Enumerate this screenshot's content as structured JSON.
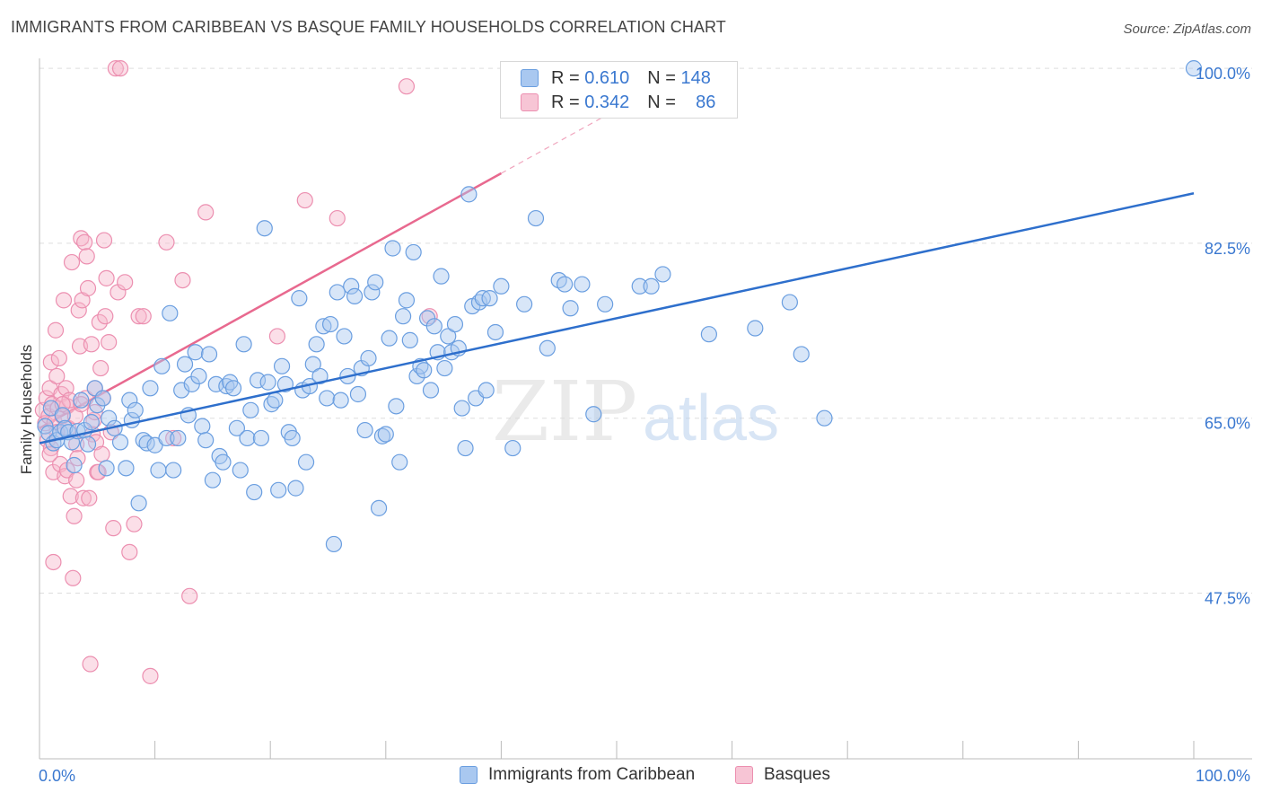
{
  "title": "IMMIGRANTS FROM CARIBBEAN VS BASQUE FAMILY HOUSEHOLDS CORRELATION CHART",
  "source": "Source: ZipAtlas.com",
  "watermark": {
    "zip": "ZIP",
    "atlas": "atlas"
  },
  "legend": {
    "rows": [
      {
        "r_label": "R =",
        "r_value": "0.610",
        "n_label": "N =",
        "n_value": "148"
      },
      {
        "r_label": "R =",
        "r_value": "0.342",
        "n_label": "N =",
        "n_value": "86"
      }
    ]
  },
  "bottom_legend": {
    "series1": "Immigrants from Caribbean",
    "series2": "Basques"
  },
  "colors": {
    "blue_fill": "#a9c8f0",
    "blue_stroke": "#6a9ee0",
    "blue_line": "#2e6fcc",
    "pink_fill": "#f7b7cb",
    "pink_stroke": "#ec8fb0",
    "pink_line": "#e8698f",
    "axis_text": "#3a78d0",
    "grid": "#dddddd"
  },
  "chart_data": {
    "type": "scatter",
    "title": "IMMIGRANTS FROM CARIBBEAN VS BASQUE FAMILY HOUSEHOLDS CORRELATION CHART",
    "xlabel": "",
    "ylabel": "Family Households",
    "xlim": [
      0,
      100
    ],
    "ylim": [
      32,
      101
    ],
    "x_tick_labels": [
      "0.0%",
      "100.0%"
    ],
    "y_ticks": [
      100.0,
      82.5,
      65.0,
      47.5
    ],
    "y_tick_labels": [
      "100.0%",
      "82.5%",
      "65.0%",
      "47.5%"
    ],
    "series": [
      {
        "name": "Immigrants from Caribbean",
        "color": "blue",
        "trendline": {
          "x0": 0,
          "y0": 62.5,
          "x1": 100,
          "y1": 87.5
        },
        "points": [
          [
            0.5,
            64.2
          ],
          [
            0.8,
            63.5
          ],
          [
            1.0,
            66.0
          ],
          [
            1.2,
            62.5
          ],
          [
            1.5,
            62.8
          ],
          [
            1.8,
            63.6
          ],
          [
            2.0,
            65.3
          ],
          [
            2.2,
            64.0
          ],
          [
            2.5,
            63.6
          ],
          [
            2.8,
            62.6
          ],
          [
            3.0,
            60.3
          ],
          [
            3.3,
            63.7
          ],
          [
            3.6,
            66.8
          ],
          [
            3.9,
            63.8
          ],
          [
            4.2,
            62.4
          ],
          [
            4.5,
            64.6
          ],
          [
            4.8,
            68.0
          ],
          [
            5.0,
            66.3
          ],
          [
            5.5,
            67.0
          ],
          [
            5.8,
            60.0
          ],
          [
            6.0,
            65.0
          ],
          [
            6.5,
            64.0
          ],
          [
            7.0,
            62.6
          ],
          [
            7.5,
            60.0
          ],
          [
            7.8,
            66.8
          ],
          [
            8.0,
            64.8
          ],
          [
            8.3,
            65.8
          ],
          [
            8.6,
            56.5
          ],
          [
            9.0,
            62.8
          ],
          [
            9.3,
            62.5
          ],
          [
            9.6,
            68.0
          ],
          [
            10.0,
            62.3
          ],
          [
            10.3,
            59.8
          ],
          [
            10.6,
            70.2
          ],
          [
            11.0,
            63.0
          ],
          [
            11.3,
            75.5
          ],
          [
            11.6,
            59.8
          ],
          [
            12.0,
            63.0
          ],
          [
            12.3,
            67.8
          ],
          [
            12.6,
            70.4
          ],
          [
            12.9,
            65.3
          ],
          [
            13.2,
            68.4
          ],
          [
            13.5,
            71.6
          ],
          [
            13.8,
            69.2
          ],
          [
            14.1,
            64.2
          ],
          [
            14.4,
            62.8
          ],
          [
            14.7,
            71.4
          ],
          [
            15.0,
            58.8
          ],
          [
            15.3,
            68.4
          ],
          [
            15.6,
            61.2
          ],
          [
            15.9,
            60.6
          ],
          [
            16.2,
            68.2
          ],
          [
            16.5,
            68.6
          ],
          [
            16.8,
            68.0
          ],
          [
            17.1,
            64.0
          ],
          [
            17.4,
            59.8
          ],
          [
            17.7,
            72.4
          ],
          [
            18.0,
            63.0
          ],
          [
            18.3,
            65.8
          ],
          [
            18.6,
            57.6
          ],
          [
            18.9,
            68.8
          ],
          [
            19.2,
            63.0
          ],
          [
            19.5,
            84.0
          ],
          [
            19.8,
            68.6
          ],
          [
            20.1,
            66.4
          ],
          [
            20.4,
            66.8
          ],
          [
            20.7,
            57.8
          ],
          [
            21.0,
            70.2
          ],
          [
            21.3,
            68.4
          ],
          [
            21.6,
            63.6
          ],
          [
            21.9,
            63.0
          ],
          [
            22.2,
            58.0
          ],
          [
            22.5,
            77.0
          ],
          [
            22.8,
            67.8
          ],
          [
            23.1,
            60.6
          ],
          [
            23.4,
            68.2
          ],
          [
            23.7,
            70.4
          ],
          [
            24.0,
            72.4
          ],
          [
            24.3,
            69.2
          ],
          [
            24.6,
            74.2
          ],
          [
            24.9,
            67.0
          ],
          [
            25.2,
            74.4
          ],
          [
            25.5,
            52.4
          ],
          [
            25.8,
            77.6
          ],
          [
            26.1,
            66.8
          ],
          [
            26.4,
            73.2
          ],
          [
            26.7,
            69.2
          ],
          [
            27.0,
            78.2
          ],
          [
            27.3,
            77.2
          ],
          [
            27.6,
            67.4
          ],
          [
            27.9,
            70.0
          ],
          [
            28.2,
            63.8
          ],
          [
            28.5,
            71.0
          ],
          [
            28.8,
            77.6
          ],
          [
            29.1,
            78.6
          ],
          [
            29.4,
            56.0
          ],
          [
            29.7,
            63.2
          ],
          [
            30.0,
            63.4
          ],
          [
            30.3,
            73.0
          ],
          [
            30.6,
            82.0
          ],
          [
            30.9,
            66.2
          ],
          [
            31.2,
            60.6
          ],
          [
            31.5,
            75.2
          ],
          [
            31.8,
            76.8
          ],
          [
            32.1,
            72.8
          ],
          [
            32.4,
            81.6
          ],
          [
            32.7,
            69.2
          ],
          [
            33.0,
            70.2
          ],
          [
            33.3,
            69.8
          ],
          [
            33.6,
            75.0
          ],
          [
            33.9,
            67.8
          ],
          [
            34.2,
            74.2
          ],
          [
            34.5,
            71.6
          ],
          [
            34.8,
            79.2
          ],
          [
            35.1,
            70.0
          ],
          [
            35.4,
            73.2
          ],
          [
            35.7,
            71.6
          ],
          [
            36.0,
            74.4
          ],
          [
            36.3,
            72.0
          ],
          [
            36.6,
            66.0
          ],
          [
            36.9,
            62.0
          ],
          [
            37.2,
            87.4
          ],
          [
            37.5,
            76.2
          ],
          [
            37.8,
            67.0
          ],
          [
            38.1,
            76.6
          ],
          [
            38.4,
            77.0
          ],
          [
            38.7,
            67.8
          ],
          [
            39.0,
            77.0
          ],
          [
            39.5,
            73.6
          ],
          [
            40.0,
            78.2
          ],
          [
            41.0,
            62.0
          ],
          [
            42.0,
            76.4
          ],
          [
            43.0,
            85.0
          ],
          [
            44.0,
            72.0
          ],
          [
            45.0,
            78.8
          ],
          [
            45.5,
            78.4
          ],
          [
            46.0,
            76.0
          ],
          [
            47.0,
            78.4
          ],
          [
            48.0,
            65.4
          ],
          [
            49.0,
            76.4
          ],
          [
            52.0,
            78.2
          ],
          [
            53.0,
            78.2
          ],
          [
            54.0,
            79.4
          ],
          [
            58.0,
            73.4
          ],
          [
            62.0,
            74.0
          ],
          [
            65.0,
            76.6
          ],
          [
            66.0,
            71.4
          ],
          [
            68.0,
            65.0
          ],
          [
            100.0,
            100.0
          ]
        ]
      },
      {
        "name": "Basques",
        "color": "pink",
        "trendline": {
          "x0": 0,
          "y0": 64.0,
          "x1": 40,
          "y1": 89.5,
          "dash_to_x": 53
        },
        "points": [
          [
            0.3,
            65.8
          ],
          [
            0.5,
            64.5
          ],
          [
            0.6,
            67.0
          ],
          [
            0.7,
            62.8
          ],
          [
            0.8,
            65.2
          ],
          [
            0.9,
            68.0
          ],
          [
            1.0,
            70.6
          ],
          [
            1.1,
            66.4
          ],
          [
            1.2,
            59.6
          ],
          [
            1.3,
            64.6
          ],
          [
            1.4,
            73.8
          ],
          [
            1.5,
            69.2
          ],
          [
            1.6,
            66.0
          ],
          [
            1.7,
            71.0
          ],
          [
            1.8,
            60.4
          ],
          [
            1.9,
            67.4
          ],
          [
            2.0,
            65.2
          ],
          [
            2.1,
            76.8
          ],
          [
            2.2,
            59.2
          ],
          [
            2.3,
            68.0
          ],
          [
            2.4,
            66.2
          ],
          [
            2.5,
            64.0
          ],
          [
            2.6,
            66.8
          ],
          [
            2.7,
            57.2
          ],
          [
            2.8,
            80.6
          ],
          [
            2.9,
            49.0
          ],
          [
            3.0,
            55.2
          ],
          [
            3.1,
            65.2
          ],
          [
            3.2,
            62.4
          ],
          [
            3.3,
            61.0
          ],
          [
            3.4,
            75.8
          ],
          [
            3.5,
            72.2
          ],
          [
            3.6,
            83.0
          ],
          [
            3.7,
            76.8
          ],
          [
            3.8,
            57.0
          ],
          [
            3.9,
            82.6
          ],
          [
            4.0,
            67.0
          ],
          [
            4.1,
            81.2
          ],
          [
            4.2,
            78.0
          ],
          [
            4.3,
            57.0
          ],
          [
            4.4,
            40.4
          ],
          [
            4.5,
            72.4
          ],
          [
            4.6,
            63.4
          ],
          [
            4.7,
            64.8
          ],
          [
            4.8,
            68.0
          ],
          [
            4.9,
            62.6
          ],
          [
            5.0,
            59.6
          ],
          [
            5.1,
            59.6
          ],
          [
            5.2,
            74.6
          ],
          [
            5.3,
            70.0
          ],
          [
            5.4,
            61.4
          ],
          [
            5.5,
            67.0
          ],
          [
            5.6,
            82.8
          ],
          [
            5.7,
            75.2
          ],
          [
            5.8,
            79.0
          ],
          [
            6.0,
            72.6
          ],
          [
            6.2,
            63.6
          ],
          [
            6.4,
            54.0
          ],
          [
            6.6,
            100.0
          ],
          [
            6.8,
            77.6
          ],
          [
            7.0,
            100.0
          ],
          [
            7.4,
            78.6
          ],
          [
            7.8,
            51.6
          ],
          [
            8.2,
            54.4
          ],
          [
            8.6,
            75.2
          ],
          [
            9.0,
            75.2
          ],
          [
            9.6,
            39.2
          ],
          [
            11.0,
            82.6
          ],
          [
            11.6,
            63.0
          ],
          [
            12.4,
            78.8
          ],
          [
            13.0,
            47.2
          ],
          [
            14.4,
            85.6
          ],
          [
            20.6,
            73.2
          ],
          [
            23.0,
            86.8
          ],
          [
            25.8,
            85.0
          ],
          [
            31.8,
            98.2
          ],
          [
            33.8,
            75.2
          ],
          [
            1.0,
            62.0
          ],
          [
            1.5,
            63.6
          ],
          [
            2.0,
            66.4
          ],
          [
            2.4,
            59.8
          ],
          [
            3.6,
            66.4
          ],
          [
            1.2,
            50.6
          ],
          [
            0.9,
            61.4
          ],
          [
            4.8,
            65.6
          ],
          [
            3.2,
            58.8
          ]
        ]
      }
    ]
  }
}
